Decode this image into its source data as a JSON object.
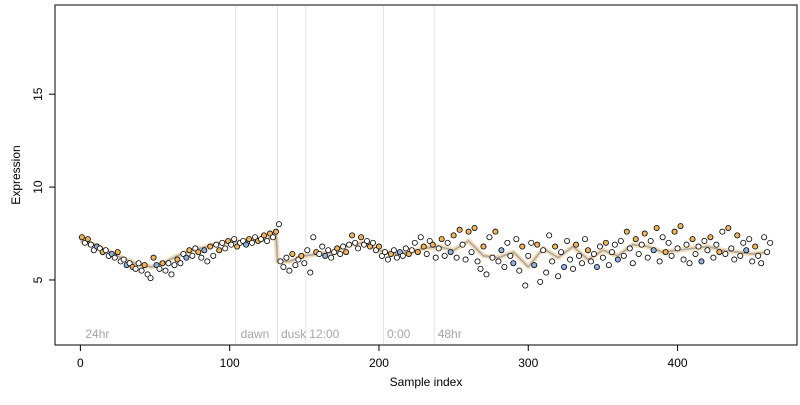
{
  "chart_data": {
    "type": "scatter",
    "title": "",
    "xlabel": "Sample index",
    "ylabel": "Expression",
    "xlim": [
      -17,
      480
    ],
    "ylim": [
      1.5,
      19.8
    ],
    "x_ticks": [
      0,
      100,
      200,
      300,
      400
    ],
    "y_ticks": [
      5,
      10,
      15
    ],
    "grid": false,
    "phase_boundaries": [
      104,
      132,
      151,
      203,
      237
    ],
    "phase_labels": [
      {
        "x": 2,
        "text": "24hr"
      },
      {
        "x": 106,
        "text": "dawn"
      },
      {
        "x": 133,
        "text": "dusk"
      },
      {
        "x": 152,
        "text": "12:00"
      },
      {
        "x": 204,
        "text": "0:00"
      },
      {
        "x": 238,
        "text": "48hr"
      }
    ],
    "series": [
      {
        "kind": "fit-line",
        "colors": {
          "line": "#a8a8a8",
          "orange": "#f0b45a",
          "blue": "#8fb0df"
        },
        "x": [
          0,
          10,
          20,
          30,
          40,
          48,
          55,
          65,
          75,
          85,
          95,
          105,
          115,
          125,
          131,
          132,
          140,
          150,
          160,
          170,
          180,
          190,
          200,
          210,
          220,
          230,
          240,
          250,
          260,
          270,
          280,
          290,
          300,
          310,
          320,
          330,
          340,
          350,
          360,
          370,
          380,
          390,
          400,
          410,
          420,
          430,
          440,
          450,
          460
        ],
        "y": [
          7.1,
          6.9,
          6.5,
          6.1,
          5.8,
          5.7,
          5.9,
          6.3,
          6.6,
          6.8,
          7.0,
          7.05,
          7.1,
          7.2,
          7.4,
          6.0,
          6.0,
          6.3,
          6.4,
          6.5,
          6.9,
          7.0,
          6.6,
          6.4,
          6.5,
          6.7,
          6.8,
          6.6,
          7.1,
          6.3,
          6.2,
          6.5,
          5.7,
          6.7,
          6.2,
          6.8,
          6.1,
          6.6,
          6.3,
          6.9,
          6.8,
          6.5,
          6.6,
          6.7,
          6.8,
          6.6,
          6.5,
          6.4,
          6.5
        ]
      },
      {
        "kind": "points",
        "fill_colors": [
          "#f0b45a",
          "#8fb0df",
          "#ffffff"
        ],
        "points": [
          [
            1,
            7.3,
            0
          ],
          [
            3,
            7.0,
            2
          ],
          [
            5,
            7.2,
            0
          ],
          [
            7,
            6.9,
            2
          ],
          [
            9,
            6.6,
            2
          ],
          [
            11,
            6.8,
            1
          ],
          [
            13,
            6.7,
            2
          ],
          [
            15,
            6.5,
            0
          ],
          [
            17,
            6.6,
            2
          ],
          [
            19,
            6.3,
            2
          ],
          [
            21,
            6.4,
            1
          ],
          [
            23,
            6.2,
            2
          ],
          [
            25,
            6.5,
            0
          ],
          [
            27,
            6.0,
            2
          ],
          [
            29,
            6.1,
            2
          ],
          [
            31,
            5.8,
            1
          ],
          [
            33,
            5.9,
            2
          ],
          [
            35,
            5.7,
            0
          ],
          [
            37,
            5.6,
            2
          ],
          [
            39,
            5.9,
            2
          ],
          [
            41,
            5.5,
            2
          ],
          [
            43,
            5.8,
            0
          ],
          [
            45,
            5.3,
            2
          ],
          [
            47,
            5.1,
            2
          ],
          [
            49,
            6.2,
            0
          ],
          [
            51,
            5.8,
            1
          ],
          [
            53,
            5.6,
            2
          ],
          [
            55,
            5.9,
            0
          ],
          [
            57,
            5.5,
            2
          ],
          [
            59,
            5.9,
            2
          ],
          [
            61,
            5.3,
            2
          ],
          [
            63,
            5.8,
            2
          ],
          [
            65,
            6.1,
            0
          ],
          [
            67,
            5.9,
            2
          ],
          [
            69,
            6.4,
            2
          ],
          [
            71,
            6.2,
            1
          ],
          [
            73,
            6.6,
            0
          ],
          [
            75,
            6.3,
            2
          ],
          [
            77,
            6.7,
            2
          ],
          [
            79,
            6.5,
            0
          ],
          [
            81,
            6.2,
            2
          ],
          [
            83,
            6.6,
            1
          ],
          [
            85,
            6.0,
            2
          ],
          [
            87,
            6.8,
            0
          ],
          [
            89,
            6.3,
            2
          ],
          [
            91,
            6.9,
            2
          ],
          [
            93,
            6.6,
            0
          ],
          [
            95,
            7.0,
            2
          ],
          [
            97,
            6.7,
            2
          ],
          [
            99,
            7.1,
            0
          ],
          [
            101,
            6.9,
            2
          ],
          [
            103,
            7.2,
            2
          ],
          [
            105,
            6.8,
            0
          ],
          [
            107,
            7.0,
            2
          ],
          [
            109,
            7.1,
            2
          ],
          [
            111,
            6.9,
            1
          ],
          [
            113,
            7.2,
            0
          ],
          [
            115,
            7.0,
            2
          ],
          [
            117,
            7.3,
            2
          ],
          [
            119,
            7.1,
            0
          ],
          [
            121,
            7.2,
            2
          ],
          [
            123,
            7.4,
            0
          ],
          [
            125,
            7.1,
            2
          ],
          [
            127,
            7.5,
            0
          ],
          [
            129,
            7.3,
            2
          ],
          [
            131,
            7.6,
            0
          ],
          [
            133,
            8.0,
            2
          ],
          [
            134,
            6.0,
            2
          ],
          [
            136,
            5.7,
            2
          ],
          [
            138,
            6.2,
            2
          ],
          [
            140,
            5.5,
            2
          ],
          [
            142,
            6.4,
            0
          ],
          [
            144,
            5.8,
            2
          ],
          [
            146,
            6.1,
            2
          ],
          [
            148,
            6.3,
            0
          ],
          [
            150,
            5.9,
            2
          ],
          [
            152,
            6.6,
            2
          ],
          [
            154,
            5.4,
            2
          ],
          [
            156,
            7.3,
            2
          ],
          [
            158,
            6.5,
            0
          ],
          [
            160,
            6.4,
            2
          ],
          [
            162,
            6.8,
            2
          ],
          [
            164,
            6.3,
            1
          ],
          [
            166,
            6.6,
            2
          ],
          [
            168,
            6.2,
            2
          ],
          [
            170,
            6.5,
            2
          ],
          [
            172,
            6.7,
            0
          ],
          [
            174,
            6.4,
            2
          ],
          [
            176,
            6.8,
            2
          ],
          [
            178,
            6.5,
            0
          ],
          [
            180,
            6.9,
            2
          ],
          [
            182,
            7.4,
            0
          ],
          [
            184,
            7.0,
            2
          ],
          [
            186,
            6.7,
            2
          ],
          [
            188,
            7.3,
            0
          ],
          [
            190,
            6.9,
            2
          ],
          [
            192,
            7.1,
            2
          ],
          [
            194,
            6.8,
            0
          ],
          [
            196,
            7.0,
            2
          ],
          [
            198,
            6.6,
            2
          ],
          [
            200,
            6.8,
            0
          ],
          [
            202,
            6.3,
            2
          ],
          [
            204,
            6.5,
            2
          ],
          [
            206,
            6.1,
            2
          ],
          [
            208,
            6.4,
            0
          ],
          [
            210,
            6.6,
            2
          ],
          [
            212,
            6.2,
            2
          ],
          [
            214,
            6.5,
            1
          ],
          [
            216,
            6.3,
            2
          ],
          [
            218,
            6.7,
            2
          ],
          [
            220,
            6.4,
            0
          ],
          [
            222,
            6.6,
            2
          ],
          [
            224,
            7.0,
            2
          ],
          [
            226,
            6.5,
            0
          ],
          [
            228,
            7.3,
            2
          ],
          [
            230,
            6.8,
            0
          ],
          [
            232,
            6.4,
            2
          ],
          [
            234,
            7.1,
            2
          ],
          [
            236,
            6.9,
            0
          ],
          [
            238,
            6.2,
            2
          ],
          [
            240,
            6.7,
            2
          ],
          [
            242,
            7.2,
            0
          ],
          [
            244,
            6.3,
            2
          ],
          [
            246,
            7.0,
            2
          ],
          [
            248,
            6.5,
            1
          ],
          [
            250,
            7.4,
            0
          ],
          [
            252,
            6.2,
            2
          ],
          [
            254,
            7.7,
            0
          ],
          [
            256,
            6.9,
            2
          ],
          [
            258,
            6.1,
            2
          ],
          [
            260,
            7.6,
            0
          ],
          [
            262,
            6.5,
            2
          ],
          [
            264,
            7.8,
            0
          ],
          [
            266,
            6.0,
            2
          ],
          [
            268,
            5.6,
            2
          ],
          [
            270,
            6.8,
            0
          ],
          [
            272,
            5.3,
            2
          ],
          [
            274,
            7.3,
            2
          ],
          [
            276,
            6.2,
            2
          ],
          [
            278,
            7.6,
            0
          ],
          [
            280,
            6.0,
            2
          ],
          [
            282,
            6.6,
            1
          ],
          [
            284,
            5.7,
            2
          ],
          [
            286,
            7.0,
            2
          ],
          [
            288,
            6.3,
            2
          ],
          [
            290,
            5.9,
            1
          ],
          [
            292,
            7.2,
            2
          ],
          [
            294,
            5.5,
            2
          ],
          [
            296,
            6.8,
            0
          ],
          [
            298,
            4.7,
            2
          ],
          [
            300,
            6.3,
            2
          ],
          [
            302,
            7.0,
            2
          ],
          [
            304,
            5.8,
            1
          ],
          [
            306,
            6.9,
            0
          ],
          [
            308,
            4.9,
            2
          ],
          [
            310,
            6.6,
            2
          ],
          [
            312,
            5.4,
            2
          ],
          [
            314,
            7.4,
            2
          ],
          [
            316,
            6.0,
            2
          ],
          [
            318,
            6.8,
            0
          ],
          [
            320,
            5.2,
            2
          ],
          [
            322,
            6.5,
            2
          ],
          [
            324,
            5.7,
            1
          ],
          [
            326,
            7.1,
            2
          ],
          [
            328,
            6.1,
            2
          ],
          [
            330,
            5.6,
            2
          ],
          [
            332,
            6.9,
            0
          ],
          [
            334,
            6.3,
            2
          ],
          [
            336,
            5.9,
            2
          ],
          [
            338,
            7.2,
            2
          ],
          [
            340,
            6.6,
            0
          ],
          [
            342,
            6.0,
            2
          ],
          [
            344,
            6.4,
            2
          ],
          [
            346,
            5.7,
            1
          ],
          [
            348,
            6.8,
            2
          ],
          [
            350,
            6.2,
            2
          ],
          [
            352,
            7.0,
            0
          ],
          [
            354,
            5.8,
            2
          ],
          [
            356,
            6.5,
            2
          ],
          [
            358,
            6.9,
            2
          ],
          [
            360,
            6.1,
            1
          ],
          [
            362,
            7.1,
            2
          ],
          [
            364,
            6.3,
            2
          ],
          [
            366,
            7.6,
            0
          ],
          [
            368,
            6.7,
            2
          ],
          [
            370,
            5.9,
            2
          ],
          [
            372,
            7.2,
            0
          ],
          [
            374,
            6.4,
            2
          ],
          [
            376,
            6.9,
            2
          ],
          [
            378,
            7.5,
            0
          ],
          [
            380,
            6.2,
            2
          ],
          [
            382,
            7.1,
            2
          ],
          [
            384,
            6.6,
            1
          ],
          [
            386,
            7.8,
            0
          ],
          [
            388,
            6.0,
            2
          ],
          [
            390,
            7.3,
            2
          ],
          [
            392,
            6.5,
            0
          ],
          [
            394,
            7.0,
            2
          ],
          [
            396,
            6.3,
            2
          ],
          [
            398,
            7.6,
            0
          ],
          [
            400,
            6.7,
            2
          ],
          [
            402,
            7.9,
            0
          ],
          [
            404,
            6.1,
            2
          ],
          [
            406,
            6.9,
            2
          ],
          [
            408,
            5.9,
            2
          ],
          [
            410,
            7.2,
            0
          ],
          [
            412,
            6.4,
            2
          ],
          [
            414,
            6.8,
            2
          ],
          [
            416,
            6.0,
            1
          ],
          [
            418,
            7.1,
            2
          ],
          [
            420,
            6.6,
            2
          ],
          [
            422,
            7.3,
            0
          ],
          [
            424,
            6.2,
            2
          ],
          [
            426,
            6.9,
            2
          ],
          [
            428,
            6.5,
            0
          ],
          [
            430,
            7.6,
            2
          ],
          [
            432,
            6.4,
            2
          ],
          [
            434,
            7.8,
            0
          ],
          [
            436,
            6.7,
            2
          ],
          [
            438,
            6.1,
            2
          ],
          [
            440,
            7.4,
            0
          ],
          [
            442,
            6.3,
            2
          ],
          [
            444,
            7.0,
            2
          ],
          [
            446,
            6.6,
            1
          ],
          [
            448,
            7.2,
            2
          ],
          [
            450,
            6.0,
            2
          ],
          [
            452,
            6.8,
            0
          ],
          [
            454,
            6.3,
            2
          ],
          [
            456,
            5.9,
            2
          ],
          [
            458,
            7.3,
            2
          ],
          [
            460,
            6.5,
            2
          ],
          [
            462,
            7.0,
            2
          ]
        ]
      }
    ]
  }
}
